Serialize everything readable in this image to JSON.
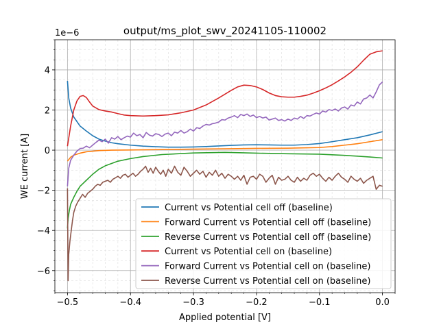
{
  "chart_data": {
    "type": "line",
    "title": "output/ms_plot_swv_20241105-110002",
    "xlabel": "Applied potential [V]",
    "ylabel": "WE current [A]",
    "y_offset_text": "1e−6",
    "xlim": [
      -0.52,
      0.02
    ],
    "ylim": [
      -7.1,
      5.5
    ],
    "x_ticks": [
      -0.5,
      -0.4,
      -0.3,
      -0.2,
      -0.1,
      0.0
    ],
    "x_tick_labels": [
      "−0.5",
      "−0.4",
      "−0.3",
      "−0.2",
      "−0.1",
      "0.0"
    ],
    "y_ticks": [
      -6,
      -4,
      -2,
      0,
      2,
      4
    ],
    "y_tick_labels": [
      "−6",
      "−4",
      "−2",
      "0",
      "2",
      "4"
    ],
    "grid": "major and minor",
    "legend_position": "lower-right",
    "series": [
      {
        "name": "Current vs Potential cell off (baseline)",
        "color": "#1f77b4",
        "x": [
          -0.5,
          -0.498,
          -0.495,
          -0.49,
          -0.48,
          -0.47,
          -0.46,
          -0.45,
          -0.44,
          -0.43,
          -0.42,
          -0.4,
          -0.38,
          -0.36,
          -0.34,
          -0.32,
          -0.3,
          -0.28,
          -0.26,
          -0.24,
          -0.22,
          -0.2,
          -0.18,
          -0.16,
          -0.14,
          -0.12,
          -0.1,
          -0.08,
          -0.06,
          -0.04,
          -0.02,
          0.0
        ],
        "y": [
          3.45,
          2.6,
          2.1,
          1.65,
          1.2,
          0.95,
          0.72,
          0.55,
          0.45,
          0.37,
          0.32,
          0.25,
          0.2,
          0.17,
          0.15,
          0.15,
          0.16,
          0.18,
          0.21,
          0.24,
          0.26,
          0.27,
          0.26,
          0.25,
          0.25,
          0.28,
          0.33,
          0.42,
          0.52,
          0.62,
          0.76,
          0.92
        ]
      },
      {
        "name": "Forward Current vs Potential cell off (baseline)",
        "color": "#ff7f0e",
        "x": [
          -0.5,
          -0.495,
          -0.49,
          -0.48,
          -0.47,
          -0.46,
          -0.45,
          -0.43,
          -0.4,
          -0.35,
          -0.3,
          -0.25,
          -0.2,
          -0.15,
          -0.1,
          -0.08,
          -0.06,
          -0.04,
          -0.02,
          0.0
        ],
        "y": [
          -0.55,
          -0.35,
          -0.25,
          -0.15,
          -0.08,
          -0.05,
          -0.02,
          0.0,
          0.01,
          0.03,
          0.05,
          0.07,
          0.09,
          0.1,
          0.13,
          0.18,
          0.25,
          0.32,
          0.42,
          0.52
        ]
      },
      {
        "name": "Reverse Current vs Potential cell off (baseline)",
        "color": "#2ca02c",
        "x": [
          -0.5,
          -0.499,
          -0.497,
          -0.495,
          -0.49,
          -0.485,
          -0.48,
          -0.47,
          -0.46,
          -0.45,
          -0.44,
          -0.42,
          -0.4,
          -0.38,
          -0.35,
          -0.3,
          -0.25,
          -0.2,
          -0.15,
          -0.1,
          -0.08,
          -0.06,
          -0.04,
          -0.02,
          0.0
        ],
        "y": [
          -3.9,
          -3.4,
          -3.0,
          -2.7,
          -2.35,
          -2.05,
          -1.8,
          -1.5,
          -1.2,
          -0.95,
          -0.78,
          -0.55,
          -0.42,
          -0.32,
          -0.22,
          -0.14,
          -0.11,
          -0.15,
          -0.18,
          -0.2,
          -0.23,
          -0.26,
          -0.3,
          -0.34,
          -0.39
        ]
      },
      {
        "name": "Current vs Potential cell on (baseline)",
        "color": "#d62728",
        "x": [
          -0.5,
          -0.495,
          -0.49,
          -0.485,
          -0.48,
          -0.475,
          -0.47,
          -0.465,
          -0.46,
          -0.45,
          -0.44,
          -0.43,
          -0.42,
          -0.41,
          -0.4,
          -0.38,
          -0.36,
          -0.34,
          -0.32,
          -0.3,
          -0.28,
          -0.26,
          -0.24,
          -0.23,
          -0.22,
          -0.21,
          -0.2,
          -0.19,
          -0.18,
          -0.17,
          -0.16,
          -0.15,
          -0.14,
          -0.13,
          -0.12,
          -0.11,
          -0.1,
          -0.09,
          -0.08,
          -0.07,
          -0.06,
          -0.05,
          -0.04,
          -0.03,
          -0.02,
          -0.01,
          0.0
        ],
        "y": [
          0.2,
          1.2,
          2.0,
          2.45,
          2.68,
          2.72,
          2.62,
          2.4,
          2.2,
          2.02,
          1.95,
          1.9,
          1.82,
          1.75,
          1.72,
          1.7,
          1.72,
          1.76,
          1.86,
          2.0,
          2.25,
          2.6,
          2.98,
          3.15,
          3.24,
          3.22,
          3.15,
          3.02,
          2.85,
          2.72,
          2.66,
          2.64,
          2.64,
          2.68,
          2.74,
          2.84,
          2.96,
          3.1,
          3.26,
          3.45,
          3.65,
          3.88,
          4.15,
          4.48,
          4.78,
          4.9,
          4.95
        ]
      },
      {
        "name": "Forward Current vs Potential cell on (baseline)",
        "color": "#9467bd",
        "x": [
          -0.5,
          -0.498,
          -0.495,
          -0.49,
          -0.485,
          -0.48,
          -0.475,
          -0.47,
          -0.465,
          -0.46,
          -0.455,
          -0.45,
          -0.445,
          -0.44,
          -0.435,
          -0.43,
          -0.425,
          -0.42,
          -0.415,
          -0.41,
          -0.405,
          -0.4,
          -0.395,
          -0.39,
          -0.385,
          -0.38,
          -0.375,
          -0.37,
          -0.365,
          -0.36,
          -0.355,
          -0.35,
          -0.345,
          -0.34,
          -0.335,
          -0.33,
          -0.325,
          -0.32,
          -0.315,
          -0.31,
          -0.305,
          -0.3,
          -0.295,
          -0.29,
          -0.285,
          -0.28,
          -0.275,
          -0.27,
          -0.265,
          -0.26,
          -0.255,
          -0.25,
          -0.245,
          -0.24,
          -0.235,
          -0.23,
          -0.225,
          -0.22,
          -0.215,
          -0.21,
          -0.205,
          -0.2,
          -0.195,
          -0.19,
          -0.185,
          -0.18,
          -0.175,
          -0.17,
          -0.165,
          -0.16,
          -0.155,
          -0.15,
          -0.145,
          -0.14,
          -0.135,
          -0.13,
          -0.125,
          -0.12,
          -0.115,
          -0.11,
          -0.105,
          -0.1,
          -0.095,
          -0.09,
          -0.085,
          -0.08,
          -0.075,
          -0.07,
          -0.065,
          -0.06,
          -0.055,
          -0.05,
          -0.045,
          -0.04,
          -0.035,
          -0.03,
          -0.025,
          -0.02,
          -0.015,
          -0.01,
          -0.005,
          0.0
        ],
        "y": [
          -1.8,
          -0.9,
          -0.5,
          -0.25,
          -0.05,
          0.08,
          0.1,
          0.2,
          0.12,
          0.25,
          0.38,
          0.5,
          0.42,
          0.55,
          0.35,
          0.62,
          0.55,
          0.68,
          0.52,
          0.62,
          0.7,
          0.65,
          0.85,
          0.72,
          0.78,
          0.62,
          0.88,
          0.75,
          0.7,
          0.82,
          0.78,
          0.68,
          0.8,
          0.85,
          0.72,
          0.9,
          0.85,
          0.98,
          0.85,
          0.92,
          1.05,
          0.95,
          1.12,
          1.08,
          1.2,
          1.28,
          1.25,
          1.32,
          1.35,
          1.4,
          1.52,
          1.5,
          1.6,
          1.65,
          1.72,
          1.62,
          1.78,
          1.72,
          1.8,
          1.68,
          1.75,
          1.62,
          1.68,
          1.6,
          1.65,
          1.5,
          1.55,
          1.6,
          1.48,
          1.52,
          1.45,
          1.55,
          1.48,
          1.6,
          1.55,
          1.68,
          1.58,
          1.72,
          1.7,
          1.78,
          1.85,
          1.8,
          1.95,
          1.9,
          2.02,
          1.98,
          2.05,
          1.95,
          2.1,
          2.15,
          2.05,
          2.25,
          2.2,
          2.4,
          2.3,
          2.55,
          2.6,
          2.75,
          2.6,
          2.9,
          3.25,
          3.4
        ]
      },
      {
        "name": "Reverse Current vs Potential cell on (baseline)",
        "color": "#8c564b",
        "x": [
          -0.5,
          -0.499,
          -0.498,
          -0.496,
          -0.494,
          -0.492,
          -0.49,
          -0.487,
          -0.484,
          -0.48,
          -0.476,
          -0.472,
          -0.468,
          -0.464,
          -0.46,
          -0.456,
          -0.452,
          -0.448,
          -0.444,
          -0.44,
          -0.436,
          -0.432,
          -0.428,
          -0.424,
          -0.42,
          -0.416,
          -0.412,
          -0.408,
          -0.404,
          -0.4,
          -0.396,
          -0.392,
          -0.388,
          -0.384,
          -0.38,
          -0.376,
          -0.372,
          -0.368,
          -0.364,
          -0.36,
          -0.356,
          -0.352,
          -0.348,
          -0.344,
          -0.34,
          -0.335,
          -0.33,
          -0.325,
          -0.32,
          -0.315,
          -0.31,
          -0.305,
          -0.3,
          -0.295,
          -0.29,
          -0.285,
          -0.28,
          -0.275,
          -0.27,
          -0.265,
          -0.26,
          -0.255,
          -0.25,
          -0.245,
          -0.24,
          -0.235,
          -0.23,
          -0.225,
          -0.22,
          -0.215,
          -0.21,
          -0.205,
          -0.2,
          -0.195,
          -0.19,
          -0.185,
          -0.18,
          -0.175,
          -0.17,
          -0.165,
          -0.16,
          -0.155,
          -0.15,
          -0.145,
          -0.14,
          -0.135,
          -0.13,
          -0.125,
          -0.12,
          -0.115,
          -0.11,
          -0.105,
          -0.1,
          -0.095,
          -0.09,
          -0.085,
          -0.08,
          -0.075,
          -0.07,
          -0.065,
          -0.06,
          -0.055,
          -0.05,
          -0.045,
          -0.04,
          -0.035,
          -0.03,
          -0.025,
          -0.02,
          -0.015,
          -0.01,
          -0.005,
          0.0
        ],
        "y": [
          -1.9,
          -6.5,
          -5.2,
          -4.5,
          -4.0,
          -3.5,
          -3.1,
          -2.8,
          -2.6,
          -2.4,
          -2.2,
          -2.35,
          -2.15,
          -2.05,
          -1.95,
          -1.8,
          -1.7,
          -1.75,
          -1.6,
          -1.55,
          -1.5,
          -1.6,
          -1.45,
          -1.38,
          -1.3,
          -1.4,
          -1.25,
          -1.2,
          -1.35,
          -1.25,
          -1.15,
          -1.3,
          -1.2,
          -1.05,
          -0.95,
          -0.8,
          -1.1,
          -0.9,
          -1.15,
          -0.85,
          -1.05,
          -1.2,
          -1.0,
          -1.3,
          -0.95,
          -1.15,
          -0.8,
          -1.1,
          -1.25,
          -0.85,
          -1.05,
          -1.3,
          -1.15,
          -1.0,
          -1.2,
          -1.05,
          -1.35,
          -1.1,
          -1.25,
          -1.0,
          -1.3,
          -1.15,
          -1.4,
          -1.2,
          -1.3,
          -1.45,
          -1.3,
          -1.5,
          -1.25,
          -1.7,
          -1.35,
          -1.3,
          -1.45,
          -1.2,
          -1.3,
          -1.6,
          -1.4,
          -1.25,
          -1.7,
          -1.35,
          -1.5,
          -1.45,
          -1.3,
          -1.5,
          -1.6,
          -1.35,
          -1.55,
          -1.4,
          -1.5,
          -1.25,
          -1.15,
          -1.3,
          -1.2,
          -1.4,
          -1.55,
          -1.35,
          -1.5,
          -1.3,
          -1.15,
          -1.35,
          -1.45,
          -1.6,
          -1.3,
          -1.45,
          -1.55,
          -1.4,
          -1.65,
          -1.5,
          -1.4,
          -1.3,
          -1.95,
          -1.75,
          -1.8
        ]
      }
    ]
  }
}
